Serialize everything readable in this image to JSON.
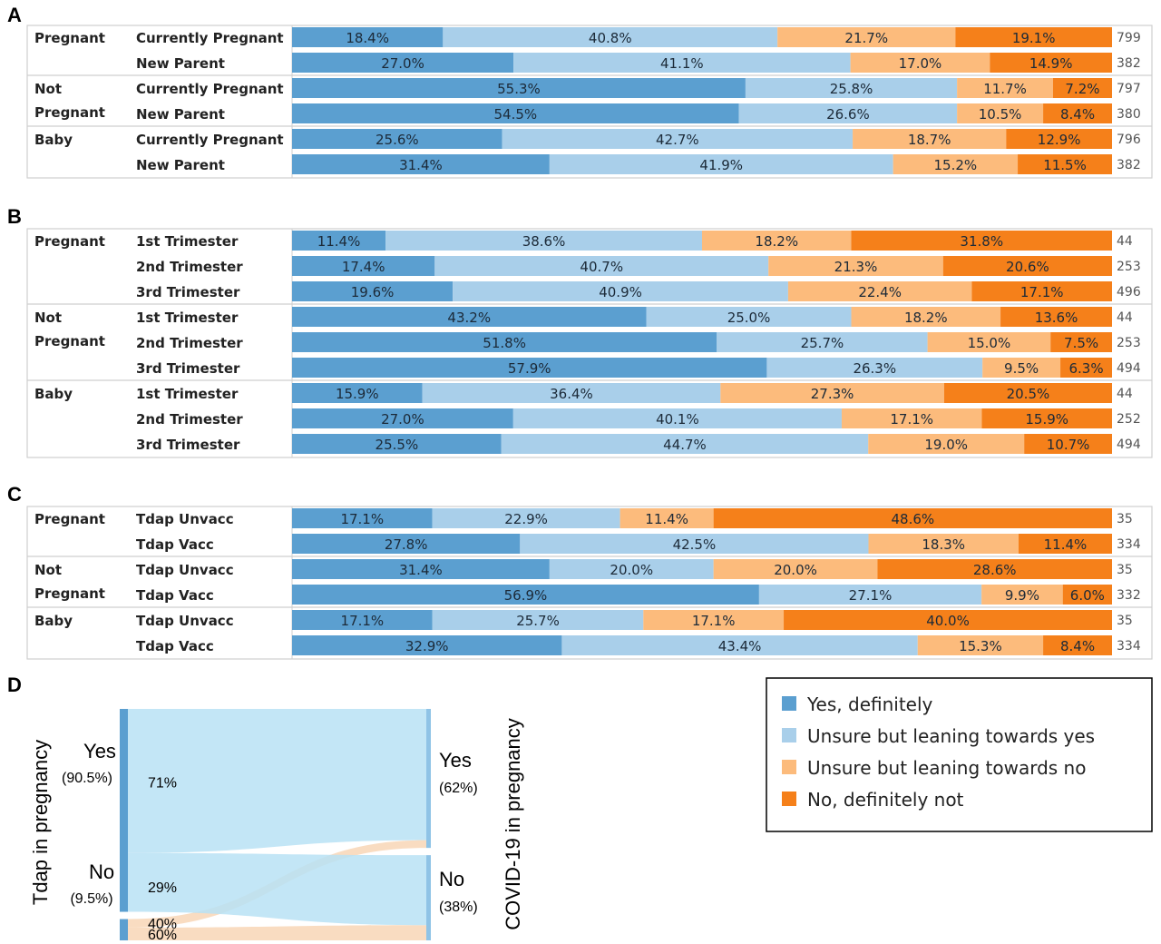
{
  "colors": {
    "yes_definitely": "#5b9fd0",
    "leaning_yes": "#a9cfea",
    "leaning_no": "#fcbb7c",
    "no_definitely": "#f5801a",
    "sankey_blue": "#b9e2f5",
    "sankey_orange": "#f8d6b6",
    "sankey_node": "#5b9fd0"
  },
  "legend": {
    "items": [
      {
        "key": "yes_definitely",
        "label": "Yes, definitely"
      },
      {
        "key": "leaning_yes",
        "label": "Unsure but leaning towards yes"
      },
      {
        "key": "leaning_no",
        "label": "Unsure but leaning towards no"
      },
      {
        "key": "no_definitely",
        "label": "No, definitely not"
      }
    ]
  },
  "chart_data": [
    {
      "type": "bar",
      "stacked": true,
      "orientation": "horizontal",
      "panel": "A",
      "groups": [
        {
          "label": [
            "Pregnant"
          ],
          "rows": [
            {
              "label": "Currently Pregnant",
              "values": [
                18.4,
                40.8,
                21.7,
                19.1
              ],
              "n": "799"
            },
            {
              "label": "New Parent",
              "values": [
                27.0,
                41.1,
                17.0,
                14.9
              ],
              "n": "382"
            }
          ]
        },
        {
          "label": [
            "Not",
            "Pregnant"
          ],
          "rows": [
            {
              "label": "Currently Pregnant",
              "values": [
                55.3,
                25.8,
                11.7,
                7.2
              ],
              "n": "797"
            },
            {
              "label": "New Parent",
              "values": [
                54.5,
                26.6,
                10.5,
                8.4
              ],
              "n": "380"
            }
          ]
        },
        {
          "label": [
            "Baby"
          ],
          "rows": [
            {
              "label": "Currently Pregnant",
              "values": [
                25.6,
                42.7,
                18.7,
                12.9
              ],
              "n": "796"
            },
            {
              "label": "New Parent",
              "values": [
                31.4,
                41.9,
                15.2,
                11.5
              ],
              "n": "382"
            }
          ]
        }
      ]
    },
    {
      "type": "bar",
      "stacked": true,
      "orientation": "horizontal",
      "panel": "B",
      "groups": [
        {
          "label": [
            "Pregnant"
          ],
          "rows": [
            {
              "label": "1st Trimester",
              "values": [
                11.4,
                38.6,
                18.2,
                31.8
              ],
              "n": "44"
            },
            {
              "label": "2nd Trimester",
              "values": [
                17.4,
                40.7,
                21.3,
                20.6
              ],
              "n": "253"
            },
            {
              "label": "3rd Trimester",
              "values": [
                19.6,
                40.9,
                22.4,
                17.1
              ],
              "n": "496"
            }
          ]
        },
        {
          "label": [
            "Not",
            "Pregnant"
          ],
          "rows": [
            {
              "label": "1st Trimester",
              "values": [
                43.2,
                25.0,
                18.2,
                13.6
              ],
              "n": "44"
            },
            {
              "label": "2nd Trimester",
              "values": [
                51.8,
                25.7,
                15.0,
                7.5
              ],
              "n": "253"
            },
            {
              "label": "3rd Trimester",
              "values": [
                57.9,
                26.3,
                9.5,
                6.3
              ],
              "n": "494"
            }
          ]
        },
        {
          "label": [
            "Baby"
          ],
          "rows": [
            {
              "label": "1st Trimester",
              "values": [
                15.9,
                36.4,
                27.3,
                20.5
              ],
              "n": "44"
            },
            {
              "label": "2nd Trimester",
              "values": [
                27.0,
                40.1,
                17.1,
                15.9
              ],
              "n": "252"
            },
            {
              "label": "3rd Trimester",
              "values": [
                25.5,
                44.7,
                19.0,
                10.7
              ],
              "n": "494"
            }
          ]
        }
      ]
    },
    {
      "type": "bar",
      "stacked": true,
      "orientation": "horizontal",
      "panel": "C",
      "groups": [
        {
          "label": [
            "Pregnant"
          ],
          "rows": [
            {
              "label": "Tdap Unvacc",
              "values": [
                17.1,
                22.9,
                11.4,
                48.6
              ],
              "n": "35"
            },
            {
              "label": "Tdap Vacc",
              "values": [
                27.8,
                42.5,
                18.3,
                11.4
              ],
              "n": "334"
            }
          ]
        },
        {
          "label": [
            "Not",
            "Pregnant"
          ],
          "rows": [
            {
              "label": "Tdap Unvacc",
              "values": [
                31.4,
                20.0,
                20.0,
                28.6
              ],
              "n": "35"
            },
            {
              "label": "Tdap Vacc",
              "values": [
                56.9,
                27.1,
                9.9,
                6.0
              ],
              "n": "332"
            }
          ]
        },
        {
          "label": [
            "Baby"
          ],
          "rows": [
            {
              "label": "Tdap Unvacc",
              "values": [
                17.1,
                25.7,
                17.1,
                40.0
              ],
              "n": "35"
            },
            {
              "label": "Tdap Vacc",
              "values": [
                32.9,
                43.4,
                15.3,
                8.4
              ],
              "n": "334"
            }
          ]
        }
      ]
    },
    {
      "type": "sankey",
      "panel": "D",
      "left_axis_label": "Tdap in pregnancy",
      "right_axis_label": "COVID-19 in pregnancy",
      "left_nodes": [
        {
          "label": "Yes",
          "share": "(90.5%)",
          "value": 90.5
        },
        {
          "label": "No",
          "share": "(9.5%)",
          "value": 9.5
        }
      ],
      "right_nodes": [
        {
          "label": "Yes",
          "share": "(62%)",
          "value": 62
        },
        {
          "label": "No",
          "share": "(38%)",
          "value": 38
        }
      ],
      "flows": [
        {
          "from": "Yes",
          "to": "Yes",
          "label": "71%",
          "value": 71
        },
        {
          "from": "Yes",
          "to": "No",
          "label": "29%",
          "value": 29
        },
        {
          "from": "No",
          "to": "Yes",
          "label": "40%",
          "value": 40
        },
        {
          "from": "No",
          "to": "No",
          "label": "60%",
          "value": 60
        }
      ]
    }
  ]
}
